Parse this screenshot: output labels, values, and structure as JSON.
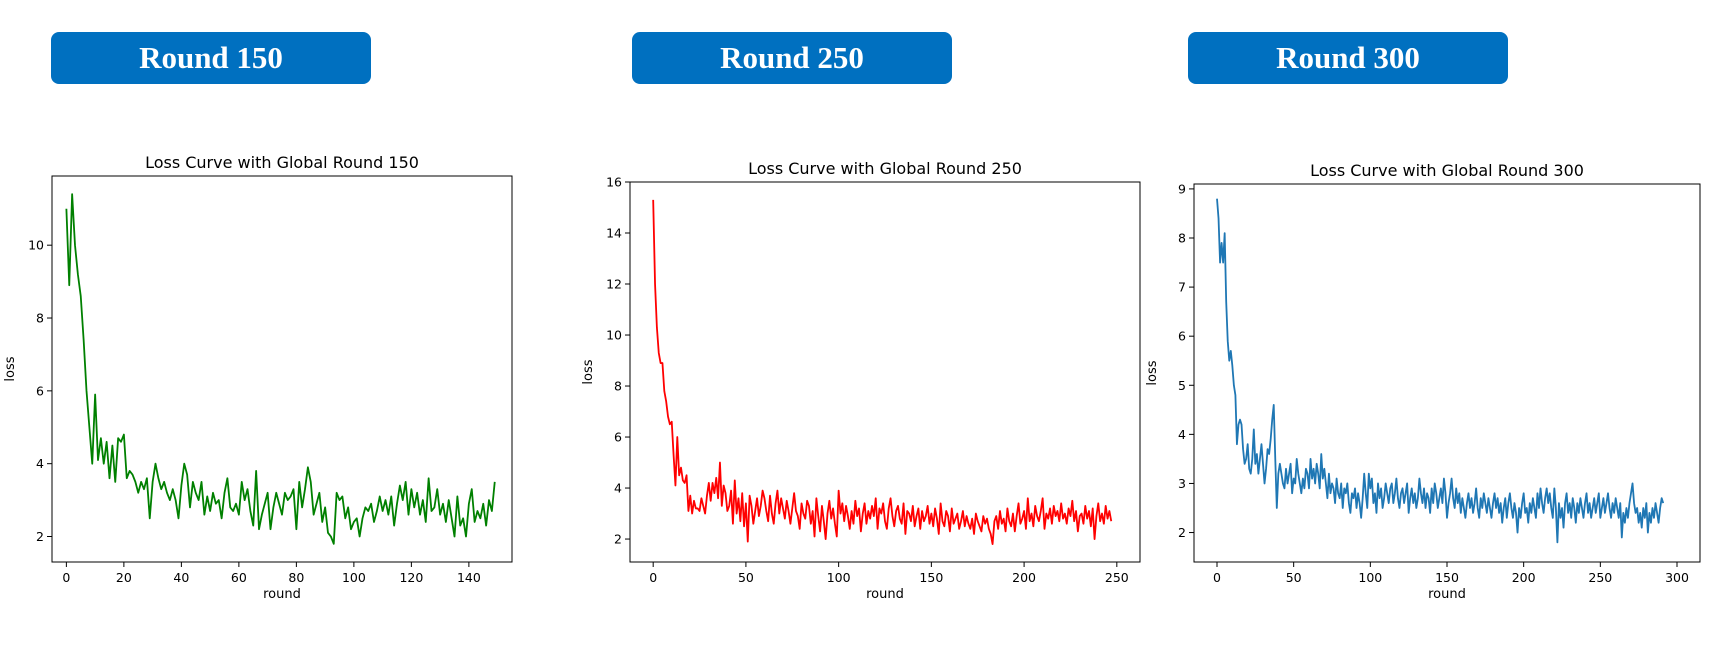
{
  "badges": [
    "Round 150",
    "Round 250",
    "Round 300"
  ],
  "chart_data": [
    {
      "type": "line",
      "title": "Loss Curve with Global Round 150",
      "xlabel": "round",
      "ylabel": "loss",
      "xlim": [
        -5,
        155
      ],
      "ylim": [
        1.3,
        11.9
      ],
      "xticks": [
        0,
        20,
        40,
        60,
        80,
        100,
        120,
        140
      ],
      "yticks": [
        2,
        4,
        6,
        8,
        10
      ],
      "color": "#008000",
      "series": [
        {
          "x_start": 0,
          "x_step": 1,
          "values": [
            11.0,
            8.9,
            11.4,
            10.0,
            9.2,
            8.6,
            7.4,
            6.0,
            5.0,
            4.0,
            5.9,
            4.1,
            4.7,
            4.0,
            4.6,
            3.6,
            4.5,
            3.5,
            4.7,
            4.6,
            4.8,
            3.6,
            3.8,
            3.7,
            3.5,
            3.2,
            3.5,
            3.3,
            3.6,
            2.5,
            3.5,
            4.0,
            3.6,
            3.3,
            3.5,
            3.2,
            3.0,
            3.3,
            3.0,
            2.5,
            3.4,
            4.0,
            3.7,
            2.8,
            3.5,
            3.2,
            3.0,
            3.5,
            2.6,
            3.1,
            2.7,
            3.2,
            2.9,
            3.0,
            2.5,
            3.2,
            3.6,
            2.8,
            2.7,
            2.9,
            2.6,
            3.5,
            3.0,
            3.3,
            2.7,
            2.3,
            3.8,
            2.2,
            2.6,
            2.9,
            3.2,
            2.2,
            2.8,
            3.2,
            2.9,
            2.6,
            3.2,
            3.0,
            3.1,
            3.3,
            2.2,
            3.5,
            2.8,
            3.3,
            3.9,
            3.5,
            2.6,
            2.9,
            3.2,
            2.4,
            2.8,
            2.1,
            2.0,
            1.8,
            3.2,
            3.0,
            3.1,
            2.5,
            2.8,
            2.2,
            2.4,
            2.5,
            2.0,
            2.5,
            2.8,
            2.7,
            2.9,
            2.4,
            2.7,
            3.1,
            2.7,
            3.0,
            2.6,
            3.1,
            2.3,
            2.9,
            3.4,
            3.0,
            3.5,
            2.6,
            3.3,
            2.8,
            3.2,
            2.6,
            3.0,
            2.4,
            3.6,
            2.7,
            2.8,
            3.3,
            2.6,
            2.9,
            2.4,
            3.0,
            2.5,
            2.0,
            3.1,
            2.3,
            2.5,
            2.0,
            2.9,
            3.3,
            2.4,
            2.7,
            2.5,
            2.9,
            2.3,
            3.0,
            2.7,
            3.5
          ]
        }
      ]
    },
    {
      "type": "line",
      "title": "Loss Curve with Global Round 250",
      "xlabel": "round",
      "ylabel": "loss",
      "xlim": [
        -12.5,
        262.5
      ],
      "ylim": [
        1.1,
        16.0
      ],
      "xticks": [
        0,
        50,
        100,
        150,
        200,
        250
      ],
      "yticks": [
        2,
        4,
        6,
        8,
        10,
        12,
        14,
        16
      ],
      "color": "#ff0000",
      "series": [
        {
          "x_start": 0,
          "x_step": 1,
          "values": [
            15.3,
            12.0,
            10.3,
            9.3,
            8.9,
            8.9,
            7.8,
            7.4,
            6.8,
            6.5,
            6.6,
            5.3,
            4.1,
            6.0,
            4.5,
            4.8,
            4.3,
            4.2,
            4.5,
            3.1,
            3.7,
            3.0,
            3.5,
            3.2,
            3.2,
            3.1,
            3.6,
            3.3,
            3.0,
            3.7,
            4.2,
            3.5,
            4.2,
            3.8,
            4.4,
            3.6,
            5.0,
            3.3,
            4.1,
            3.8,
            3.1,
            3.3,
            3.9,
            2.6,
            4.3,
            3.0,
            3.6,
            2.7,
            3.8,
            2.5,
            3.4,
            1.9,
            3.7,
            3.3,
            2.6,
            3.1,
            3.6,
            2.9,
            3.3,
            3.9,
            3.6,
            3.1,
            2.7,
            3.7,
            3.0,
            2.6,
            3.4,
            3.9,
            3.0,
            3.6,
            3.2,
            2.8,
            3.5,
            3.1,
            2.6,
            3.2,
            3.8,
            3.1,
            2.9,
            2.4,
            3.4,
            3.0,
            2.8,
            3.5,
            3.3,
            2.6,
            3.1,
            2.1,
            3.6,
            2.9,
            2.3,
            3.3,
            2.7,
            2.0,
            3.0,
            3.5,
            2.8,
            3.2,
            2.6,
            2.1,
            3.9,
            3.0,
            3.4,
            2.7,
            3.3,
            2.9,
            2.4,
            3.1,
            2.6,
            3.5,
            2.9,
            3.2,
            2.3,
            3.0,
            3.4,
            2.6,
            3.1,
            2.8,
            3.3,
            2.9,
            3.6,
            2.4,
            3.2,
            3.0,
            3.4,
            2.7,
            2.4,
            3.2,
            3.6,
            2.9,
            2.5,
            3.1,
            3.3,
            2.8,
            2.6,
            3.4,
            2.2,
            3.1,
            3.0,
            2.7,
            3.3,
            2.5,
            2.9,
            3.2,
            2.4,
            3.1,
            2.7,
            2.9,
            3.3,
            2.6,
            3.0,
            2.5,
            3.2,
            2.8,
            2.2,
            3.4,
            2.7,
            2.5,
            3.1,
            2.9,
            2.3,
            3.2,
            2.6,
            2.8,
            3.0,
            2.4,
            2.7,
            3.1,
            2.5,
            2.9,
            2.6,
            2.4,
            2.8,
            2.2,
            3.0,
            2.7,
            2.5,
            2.3,
            2.9,
            2.6,
            2.8,
            2.4,
            2.2,
            1.8,
            2.7,
            2.9,
            2.4,
            3.1,
            2.6,
            2.8,
            2.3,
            3.2,
            2.7,
            2.5,
            3.0,
            2.3,
            2.9,
            3.4,
            2.6,
            2.8,
            3.1,
            2.4,
            3.6,
            2.7,
            3.0,
            2.5,
            3.3,
            2.9,
            2.7,
            3.1,
            3.6,
            2.4,
            3.0,
            2.8,
            3.2,
            2.6,
            3.3,
            2.9,
            3.1,
            2.7,
            3.4,
            2.8,
            3.0,
            2.6,
            3.2,
            2.9,
            3.5,
            2.7,
            3.1,
            2.3,
            2.9,
            3.0,
            2.6,
            3.3,
            2.8,
            3.1,
            2.5,
            3.2,
            2.0,
            2.9,
            3.4,
            2.7,
            3.0,
            2.6,
            3.3,
            2.8,
            3.1,
            2.7
          ]
        }
      ]
    },
    {
      "type": "line",
      "title": "Loss Curve with Global Round 300",
      "xlabel": "round",
      "ylabel": "loss",
      "xlim": [
        -15,
        315
      ],
      "ylim": [
        1.4,
        9.1
      ],
      "xticks": [
        0,
        50,
        100,
        150,
        200,
        250,
        300
      ],
      "yticks": [
        2,
        3,
        4,
        5,
        6,
        7,
        8,
        9
      ],
      "color": "#1f77b4",
      "series": [
        {
          "x_start": 0,
          "x_step": 1,
          "values": [
            8.8,
            8.4,
            7.5,
            7.9,
            7.5,
            8.1,
            6.7,
            5.9,
            5.5,
            5.7,
            5.4,
            5.0,
            4.8,
            3.8,
            4.2,
            4.3,
            4.2,
            3.7,
            3.4,
            3.5,
            3.8,
            3.3,
            3.2,
            3.5,
            4.1,
            3.4,
            3.6,
            3.2,
            3.5,
            3.8,
            3.4,
            3.0,
            3.3,
            3.7,
            3.6,
            3.9,
            4.3,
            4.6,
            3.5,
            2.5,
            3.2,
            3.4,
            3.2,
            3.0,
            2.9,
            3.3,
            3.0,
            3.2,
            3.4,
            2.8,
            3.1,
            3.0,
            3.5,
            3.2,
            3.0,
            2.8,
            3.1,
            2.9,
            3.3,
            3.2,
            2.9,
            3.5,
            3.1,
            3.3,
            3.0,
            3.4,
            3.2,
            2.9,
            3.6,
            3.1,
            3.3,
            3.0,
            2.7,
            3.2,
            2.8,
            3.0,
            2.9,
            2.6,
            3.1,
            2.8,
            2.7,
            3.0,
            2.5,
            2.9,
            2.8,
            3.0,
            2.6,
            2.4,
            2.8,
            2.7,
            2.9,
            2.5,
            2.8,
            2.6,
            2.3,
            2.7,
            3.2,
            2.8,
            2.5,
            3.2,
            2.9,
            3.1,
            2.6,
            2.8,
            2.4,
            3.0,
            2.7,
            2.9,
            2.5,
            2.7,
            3.0,
            2.8,
            2.6,
            2.9,
            3.0,
            2.6,
            2.8,
            3.1,
            2.7,
            2.5,
            2.8,
            2.9,
            2.6,
            2.8,
            3.0,
            2.4,
            2.7,
            2.9,
            2.6,
            2.8,
            2.5,
            2.7,
            3.1,
            2.8,
            2.6,
            2.9,
            2.5,
            2.8,
            2.7,
            2.4,
            2.9,
            2.6,
            3.0,
            2.8,
            2.5,
            2.7,
            2.9,
            2.6,
            3.1,
            2.8,
            2.3,
            2.6,
            2.8,
            3.1,
            2.7,
            2.5,
            2.9,
            2.6,
            2.8,
            2.4,
            2.7,
            2.5,
            2.3,
            2.6,
            2.8,
            2.5,
            2.7,
            2.4,
            2.6,
            2.9,
            2.5,
            2.3,
            2.7,
            2.5,
            2.8,
            2.6,
            2.4,
            2.7,
            2.5,
            2.3,
            2.6,
            2.8,
            2.5,
            2.7,
            2.4,
            2.6,
            2.2,
            2.5,
            2.7,
            2.3,
            2.6,
            2.8,
            2.5,
            2.3,
            2.6,
            2.4,
            2.0,
            2.5,
            2.3,
            2.6,
            2.8,
            2.4,
            2.5,
            2.2,
            2.6,
            2.4,
            2.7,
            2.5,
            2.3,
            2.8,
            2.5,
            2.9,
            2.6,
            2.4,
            2.7,
            2.9,
            2.6,
            2.8,
            2.5,
            2.3,
            2.9,
            2.5,
            1.8,
            2.6,
            2.3,
            2.5,
            2.1,
            2.6,
            2.8,
            2.4,
            2.6,
            2.3,
            2.7,
            2.5,
            2.2,
            2.6,
            2.4,
            2.7,
            2.5,
            2.3,
            2.6,
            2.8,
            2.4,
            2.6,
            2.3,
            2.5,
            2.7,
            2.4,
            2.6,
            2.8,
            2.3,
            2.5,
            2.7,
            2.4,
            2.6,
            2.8,
            2.5,
            2.3,
            2.6,
            2.4,
            2.7,
            2.5,
            2.3,
            2.6,
            1.9,
            2.4,
            2.2,
            2.5,
            2.3,
            2.6,
            2.8,
            3.0,
            2.6,
            2.4,
            2.5,
            2.2,
            2.4,
            2.1,
            2.5,
            2.3,
            2.6,
            2.0,
            2.4,
            2.2,
            2.5,
            2.3,
            2.6,
            2.4,
            2.2,
            2.5,
            2.7,
            2.6
          ]
        }
      ]
    }
  ]
}
